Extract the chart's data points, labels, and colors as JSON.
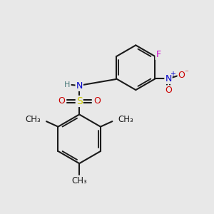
{
  "bg_color": "#e8e8e8",
  "bond_color": "#1a1a1a",
  "bond_width": 1.5,
  "atom_colors": {
    "N": "#0000cc",
    "H": "#4a7a7a",
    "S": "#cccc00",
    "O": "#cc0000",
    "F": "#cc00cc",
    "C": "#1a1a1a"
  },
  "font_size": 9,
  "fig_size": [
    3.0,
    3.0
  ],
  "dpi": 100,
  "xlim": [
    0,
    10
  ],
  "ylim": [
    0,
    10
  ]
}
